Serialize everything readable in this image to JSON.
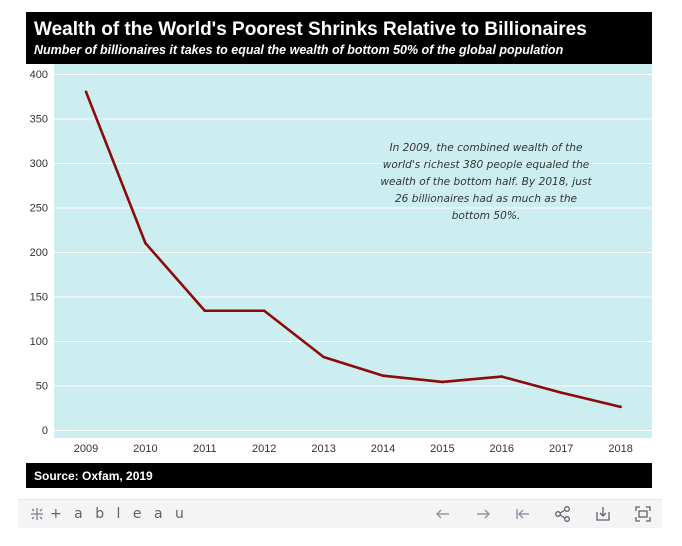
{
  "header": {
    "title": "Wealth of the World's Poorest Shrinks Relative to Billionaires",
    "subtitle": "Number of billionaires it takes to equal the wealth of bottom 50% of the global population"
  },
  "annotation": {
    "lines": [
      "In 2009, the combined wealth of the",
      "world's richest 380 people equaled the",
      "wealth of the bottom half. By 2018, just",
      "26 billionaires had as much as the",
      "bottom 50%."
    ]
  },
  "footer": {
    "source": "Source: Oxfam, 2019"
  },
  "toolbar": {
    "brand": "+ a b l e a u",
    "icons": [
      "undo-icon",
      "redo-icon",
      "revert-icon",
      "share-icon",
      "download-icon",
      "fullscreen-icon"
    ]
  },
  "colors": {
    "plot_background": "#cdeef0",
    "line": "#8b0a0a",
    "header_background": "#000000"
  },
  "chart_data": {
    "type": "line",
    "x": [
      "2009",
      "2010",
      "2011",
      "2012",
      "2013",
      "2014",
      "2015",
      "2016",
      "2017",
      "2018"
    ],
    "series": [
      {
        "values": [
          380,
          210,
          134,
          134,
          82,
          61,
          54,
          60,
          42,
          26
        ]
      }
    ],
    "yticks": [
      0,
      50,
      100,
      150,
      200,
      250,
      300,
      350,
      400
    ],
    "ylim": [
      0,
      400
    ],
    "grid": true,
    "legend": "none"
  }
}
